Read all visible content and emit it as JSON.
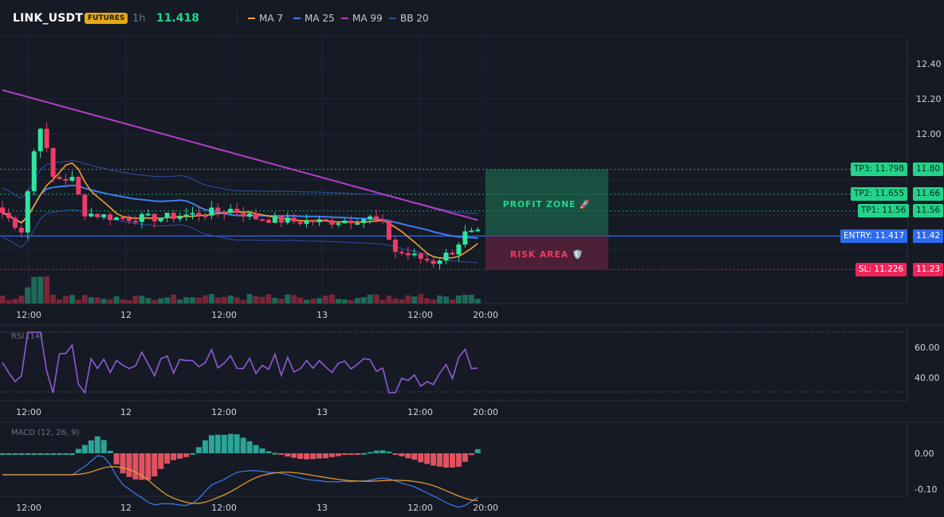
{
  "header": {
    "symbol": "LINK_USDT",
    "badge": "FUTURES",
    "timeframe": "1h",
    "last_price": "11.418",
    "legend": [
      {
        "label": "MA 7",
        "color": "#f0a030"
      },
      {
        "label": "MA 25",
        "color": "#3f7cf0"
      },
      {
        "label": "MA 99",
        "color": "#b23ec6"
      },
      {
        "label": "BB 20",
        "color": "#2f4fa8"
      }
    ]
  },
  "colors": {
    "up": "#2ee6a0",
    "down": "#ef3b67",
    "background": "#161a25"
  },
  "main": {
    "y_ticks": [
      "12.40",
      "12.20",
      "12.00"
    ],
    "x_ticks": [
      "12:00",
      "12",
      "12:00",
      "13",
      "12:00",
      "20:00"
    ],
    "zones": {
      "profit_label": "PROFIT ZONE 🚀",
      "risk_label": "RISK AREA 🛡️"
    },
    "levels": [
      {
        "name": "tp3",
        "tag": "TP3: 11.798",
        "axis": "11.80",
        "color": "#22d48a"
      },
      {
        "name": "tp2",
        "tag": "TP2: 11.655",
        "axis": "11.66",
        "color": "#22d48a"
      },
      {
        "name": "tp1",
        "tag": "TP1: 11.56",
        "axis": "11.56",
        "color": "#22d48a"
      },
      {
        "name": "entry",
        "tag": "ENTRY: 11.417",
        "axis": "11.42",
        "color": "#2f6bef"
      },
      {
        "name": "sl",
        "tag": "SL: 11.226",
        "axis": "11.23",
        "color": "#f0245a"
      }
    ]
  },
  "rsi": {
    "label": "RSI (14)",
    "y_ticks": [
      "60.00",
      "40.00"
    ],
    "x_ticks": [
      "12:00",
      "12",
      "12:00",
      "13",
      "12:00",
      "20:00"
    ]
  },
  "macd": {
    "label": "MACD (12, 26, 9)",
    "y_ticks": [
      "0.00",
      "-0.10"
    ],
    "x_ticks": [
      "12:00",
      "12",
      "12:00",
      "13",
      "12:00",
      "20:00"
    ]
  },
  "chart_data": {
    "type": "candlestick",
    "price_ticks": [
      12.4,
      12.2,
      12.0
    ],
    "levels": {
      "tp3": 11.798,
      "tp2": 11.655,
      "tp1": 11.56,
      "entry": 11.417,
      "sl": 11.226
    },
    "rsi_ticks": [
      60,
      40
    ],
    "macd_ticks": [
      0.0,
      -0.1
    ]
  }
}
